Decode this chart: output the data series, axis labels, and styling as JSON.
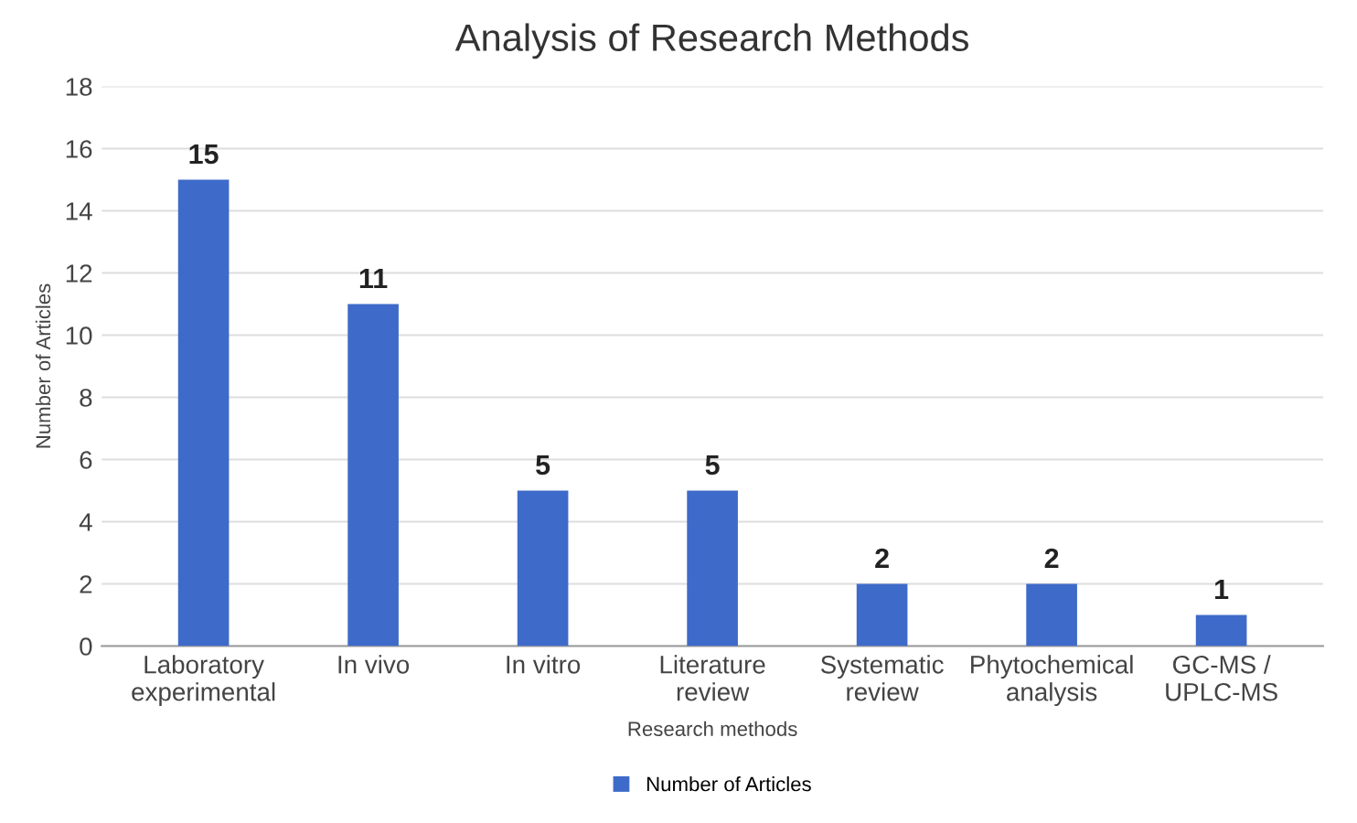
{
  "chart_data": {
    "type": "bar",
    "title": "Analysis of Research Methods",
    "xlabel": "Research methods",
    "ylabel": "Number of Articles",
    "categories": [
      "Laboratory\nexperimental",
      "In vivo",
      "In vitro",
      "Literature\nreview",
      "Systematic\nreview",
      "Phytochemical\nanalysis",
      "GC-MS /\nUPLC-MS"
    ],
    "series": [
      {
        "name": "Number of Articles",
        "color": "#3e6bc9",
        "values": [
          15,
          11,
          5,
          5,
          2,
          2,
          1
        ]
      }
    ],
    "ylim": [
      0,
      18
    ],
    "yticks": [
      0,
      2,
      4,
      6,
      8,
      10,
      12,
      14,
      16,
      18
    ],
    "grid": "y",
    "legend": "bottom",
    "data_labels": true
  }
}
